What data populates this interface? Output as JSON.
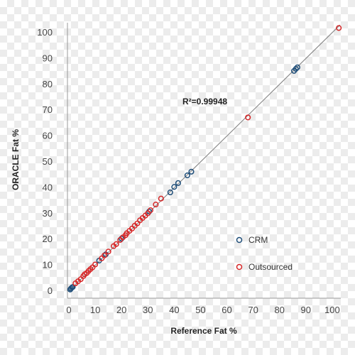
{
  "chart_data": {
    "type": "scatter",
    "xlabel": "Reference Fat %",
    "ylabel": "ORACLE Fat %",
    "xlim": [
      0,
      103
    ],
    "ylim": [
      0,
      103
    ],
    "x_ticks": [
      0,
      10,
      20,
      30,
      40,
      50,
      60,
      70,
      80,
      90,
      100
    ],
    "y_ticks": [
      0,
      10,
      20,
      30,
      40,
      50,
      60,
      70,
      80,
      90,
      100
    ],
    "grid": false,
    "legend_position": "lower-right",
    "annotation": "R²=0.99948",
    "trendline": {
      "x": [
        0,
        103
      ],
      "y": [
        0,
        103
      ]
    },
    "series": [
      {
        "name": "CRM",
        "color": "#1f4e79",
        "points": [
          [
            0.5,
            0.6
          ],
          [
            0.8,
            1.0
          ],
          [
            1.2,
            1.4
          ],
          [
            1.5,
            1.6
          ],
          [
            11.5,
            11.8
          ],
          [
            14,
            14.2
          ],
          [
            20,
            20.3
          ],
          [
            30.5,
            30.8
          ],
          [
            38.5,
            38.2
          ],
          [
            40,
            40.3
          ],
          [
            41.5,
            41.8
          ],
          [
            45,
            44.8
          ],
          [
            46.5,
            46.2
          ],
          [
            85.5,
            85.2
          ],
          [
            86.2,
            86.0
          ],
          [
            86.8,
            86.6
          ]
        ]
      },
      {
        "name": "Outsourced",
        "color": "#d62728",
        "points": [
          [
            2.5,
            3.0
          ],
          [
            3.5,
            3.8
          ],
          [
            4.5,
            4.6
          ],
          [
            5.5,
            5.8
          ],
          [
            6.0,
            6.5
          ],
          [
            6.8,
            7.0
          ],
          [
            7.5,
            7.8
          ],
          [
            8.2,
            8.5
          ],
          [
            9.0,
            9.2
          ],
          [
            10.0,
            10.3
          ],
          [
            12.5,
            12.7
          ],
          [
            13.5,
            13.8
          ],
          [
            15.0,
            15.3
          ],
          [
            17.0,
            17.4
          ],
          [
            18.0,
            18.2
          ],
          [
            19.5,
            19.8
          ],
          [
            20.5,
            20.8
          ],
          [
            21.5,
            21.6
          ],
          [
            22.0,
            22.4
          ],
          [
            23.0,
            23.3
          ],
          [
            24.0,
            24.2
          ],
          [
            25.0,
            25.3
          ],
          [
            26.0,
            26.2
          ],
          [
            27.0,
            27.4
          ],
          [
            28.0,
            28.3
          ],
          [
            29.0,
            29.2
          ],
          [
            30.0,
            30.1
          ],
          [
            31.0,
            31.3
          ],
          [
            33.0,
            33.5
          ],
          [
            35.0,
            35.8
          ],
          [
            68.0,
            67.2
          ],
          [
            102.5,
            101.8
          ]
        ]
      }
    ]
  }
}
